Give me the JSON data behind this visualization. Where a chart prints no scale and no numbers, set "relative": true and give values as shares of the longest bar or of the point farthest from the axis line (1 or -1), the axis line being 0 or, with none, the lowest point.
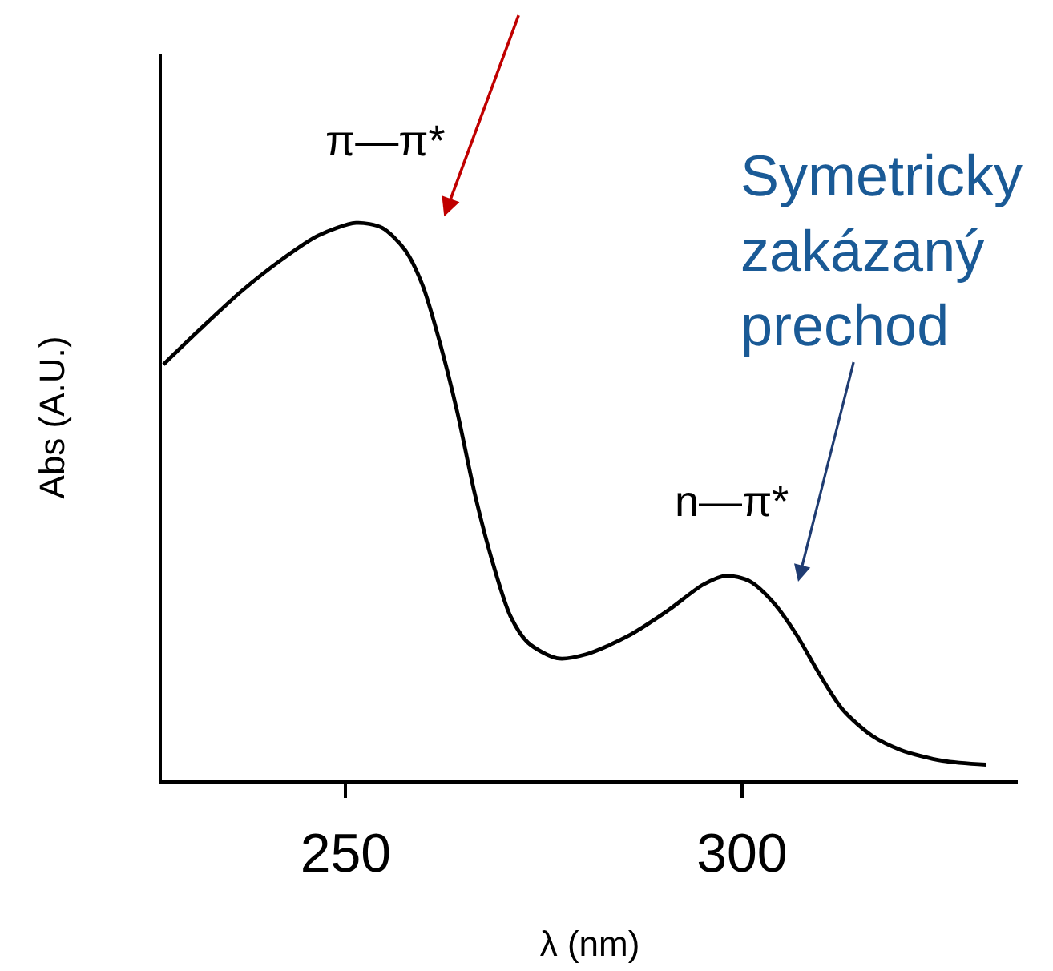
{
  "chart_data": {
    "type": "line",
    "xlabel": "λ (nm)",
    "ylabel": "Abs (A.U.)",
    "relative": true,
    "x": [
      227.0,
      231.7,
      236.9,
      242.0,
      246.5,
      251.3,
      254.6,
      257.5,
      259.7,
      261.9,
      264.1,
      266.3,
      268.6,
      270.8,
      273.0,
      276.7,
      280.3,
      285.5,
      290.6,
      295.1,
      298.0,
      301.0,
      303.9,
      306.8,
      309.8,
      312.7,
      316.4,
      320.1,
      325.3,
      330.8
    ],
    "series": [
      {
        "color": "#000000",
        "values": [
          0.746,
          0.81,
          0.878,
          0.935,
          0.977,
          1.0,
          0.991,
          0.951,
          0.888,
          0.784,
          0.659,
          0.513,
          0.388,
          0.294,
          0.247,
          0.219,
          0.226,
          0.258,
          0.304,
          0.351,
          0.367,
          0.357,
          0.32,
          0.263,
          0.19,
          0.127,
          0.08,
          0.054,
          0.035,
          0.028
        ]
      }
    ],
    "xlim": [
      226.8,
      334.8
    ],
    "xticks": [
      250,
      300
    ],
    "annotations": [
      {
        "text": "π—π*",
        "x": 251.3,
        "y": 1.0
      },
      {
        "text": "n—π*",
        "x": 298.0,
        "y": 0.367
      },
      "Symetricky zakázaný prechod"
    ]
  }
}
